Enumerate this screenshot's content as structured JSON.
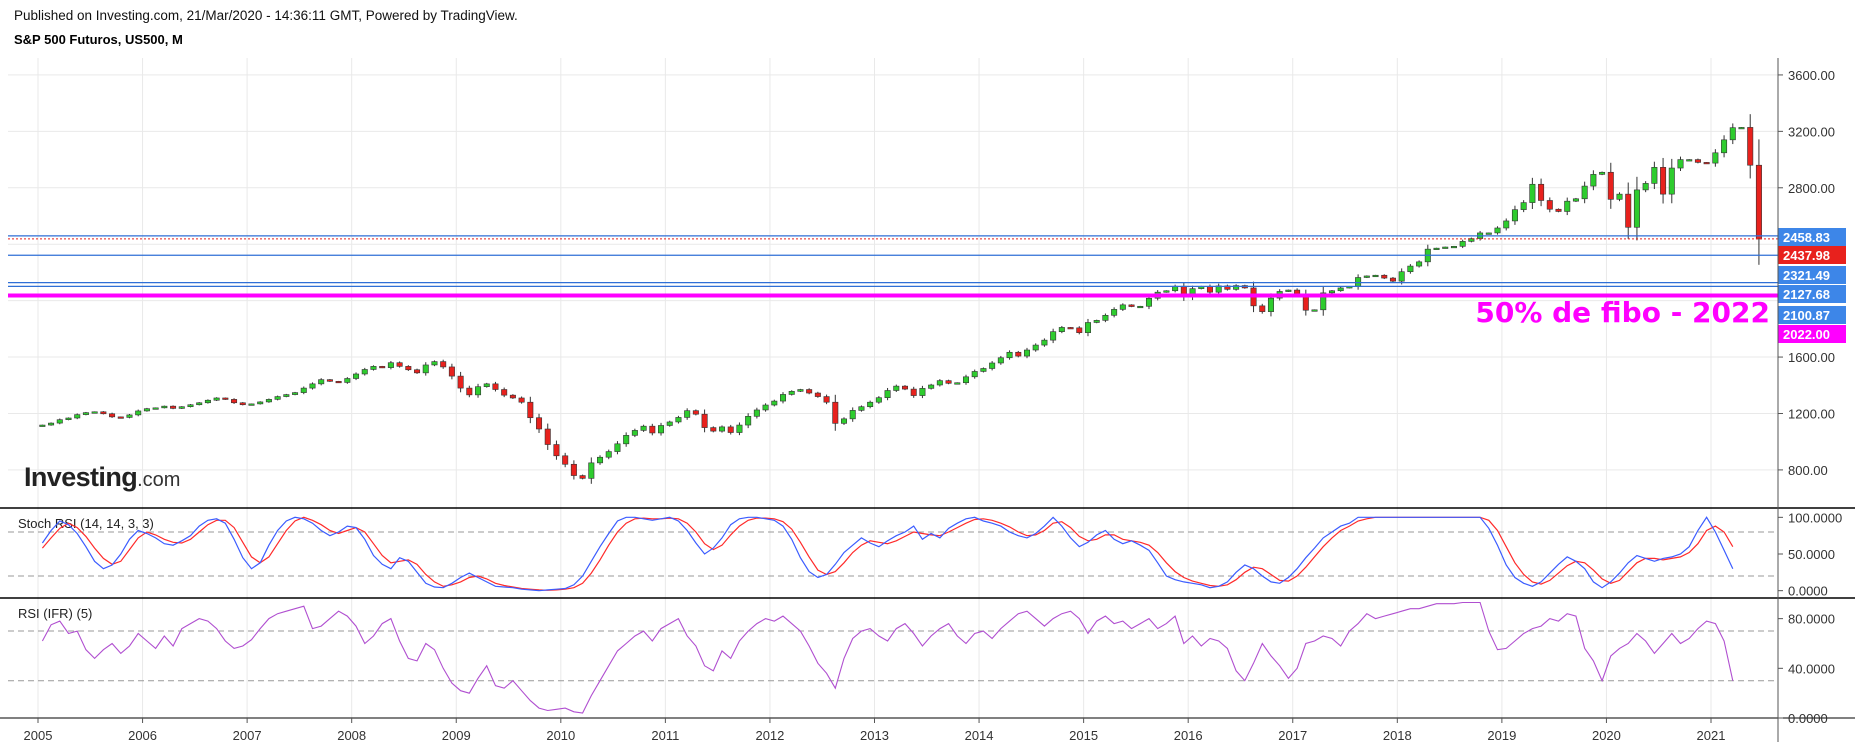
{
  "header": {
    "published": "Published on Investing.com, 21/Mar/2020 - 14:36:11 GMT, Powered by TradingView.",
    "symbol": "S&P 500 Futuros, US500, M"
  },
  "logo": {
    "word": "Investing",
    "suffix": ".com"
  },
  "annotation": "50% de fibo - 2022",
  "colors": {
    "up": "#2ecc2e",
    "down": "#e8211d",
    "blue_line": "#2f6fd6",
    "fibo": "#ff00ff",
    "stoch_k": "#3b5cff",
    "stoch_d": "#ff2a2a",
    "rsi": "#b04fd0",
    "grid": "#e9e9e9"
  },
  "chart_data": [
    {
      "panel": "price",
      "type": "candlestick",
      "xlabels": [
        "2005",
        "2006",
        "2007",
        "2008",
        "2009",
        "2010",
        "2011",
        "2012",
        "2013",
        "2014",
        "2015",
        "2016",
        "2017",
        "2018",
        "2019",
        "2020",
        "2021"
      ],
      "yticks": [
        "3600.00",
        "3200.00",
        "2800.00",
        "1600.00",
        "1200.00",
        "800.00"
      ],
      "ylim": [
        530,
        3720
      ],
      "series": [
        {
          "name": "close",
          "values": [
            1118,
            1132,
            1156,
            1168,
            1192,
            1206,
            1212,
            1198,
            1176,
            1172,
            1190,
            1218,
            1234,
            1240,
            1252,
            1236,
            1248,
            1262,
            1276,
            1294,
            1310,
            1300,
            1276,
            1262,
            1268,
            1282,
            1300,
            1320,
            1334,
            1348,
            1380,
            1410,
            1440,
            1428,
            1420,
            1448,
            1480,
            1512,
            1534,
            1525,
            1560,
            1534,
            1510,
            1488,
            1544,
            1568,
            1530,
            1465,
            1380,
            1332,
            1390,
            1410,
            1370,
            1330,
            1310,
            1280,
            1170,
            1090,
            980,
            900,
            840,
            760,
            740,
            850,
            890,
            930,
            985,
            1045,
            1080,
            1110,
            1062,
            1115,
            1140,
            1172,
            1220,
            1195,
            1100,
            1075,
            1105,
            1065,
            1118,
            1180,
            1225,
            1260,
            1288,
            1335,
            1357,
            1370,
            1345,
            1320,
            1280,
            1130,
            1162,
            1222,
            1248,
            1280,
            1312,
            1363,
            1394,
            1373,
            1327,
            1378,
            1402,
            1433,
            1414,
            1418,
            1460,
            1498,
            1519,
            1558,
            1595,
            1634,
            1607,
            1650,
            1685,
            1720,
            1780,
            1810,
            1807,
            1773,
            1845,
            1860,
            1896,
            1938,
            1970,
            1958,
            1960,
            2017,
            2060,
            2070,
            2102,
            2025,
            2085,
            2100,
            2060,
            2105,
            2080,
            2107,
            2090,
            1963,
            1922,
            2018,
            2065,
            2075,
            2040,
            1932,
            1935,
            2055,
            2070,
            2090,
            2100,
            2164,
            2175,
            2180,
            2160,
            2138,
            2205,
            2245,
            2275,
            2365,
            2372,
            2380,
            2385,
            2420,
            2440,
            2480,
            2480,
            2515,
            2565,
            2645,
            2695,
            2825,
            2710,
            2648,
            2632,
            2705,
            2722,
            2812,
            2895,
            2910,
            2718,
            2755,
            2520,
            2785,
            2831,
            2945,
            2755,
            2940,
            3000,
            3000,
            2980,
            2975,
            3048,
            3140,
            3226,
            3228,
            2960,
            2437
          ]
        },
        {
          "name": "open",
          "values": [
            1110,
            1118,
            1132,
            1156,
            1168,
            1192,
            1206,
            1212,
            1198,
            1176,
            1172,
            1190,
            1218,
            1234,
            1240,
            1252,
            1236,
            1248,
            1262,
            1276,
            1294,
            1310,
            1300,
            1276,
            1262,
            1268,
            1282,
            1300,
            1320,
            1334,
            1348,
            1380,
            1410,
            1440,
            1428,
            1420,
            1448,
            1480,
            1512,
            1534,
            1525,
            1560,
            1534,
            1510,
            1488,
            1544,
            1568,
            1530,
            1465,
            1380,
            1332,
            1390,
            1410,
            1370,
            1330,
            1310,
            1280,
            1170,
            1090,
            980,
            900,
            840,
            760,
            740,
            850,
            890,
            930,
            985,
            1045,
            1080,
            1110,
            1062,
            1115,
            1140,
            1172,
            1220,
            1195,
            1100,
            1075,
            1105,
            1065,
            1118,
            1180,
            1225,
            1260,
            1288,
            1335,
            1357,
            1370,
            1345,
            1320,
            1280,
            1130,
            1162,
            1222,
            1248,
            1280,
            1312,
            1363,
            1394,
            1373,
            1327,
            1378,
            1402,
            1433,
            1414,
            1418,
            1460,
            1498,
            1519,
            1558,
            1595,
            1634,
            1607,
            1650,
            1685,
            1720,
            1780,
            1810,
            1807,
            1773,
            1845,
            1860,
            1896,
            1938,
            1970,
            1958,
            1960,
            2017,
            2060,
            2070,
            2102,
            2025,
            2085,
            2100,
            2060,
            2105,
            2080,
            2107,
            2090,
            1963,
            1922,
            2018,
            2065,
            2075,
            2040,
            1932,
            1935,
            2055,
            2070,
            2090,
            2100,
            2164,
            2175,
            2180,
            2160,
            2138,
            2205,
            2245,
            2275,
            2365,
            2372,
            2380,
            2385,
            2420,
            2440,
            2480,
            2480,
            2515,
            2565,
            2645,
            2695,
            2825,
            2710,
            2648,
            2632,
            2705,
            2722,
            2812,
            2895,
            2910,
            2718,
            2755,
            2520,
            2785,
            2831,
            2945,
            2755,
            2940,
            3000,
            3000,
            2980,
            2975,
            3048,
            3140,
            3226,
            3228,
            2960
          ]
        }
      ],
      "first_period": "2005-01",
      "period": "month",
      "horizontal_levels": [
        {
          "value": 2458.83,
          "label": "2458.83",
          "color": "#2f6fd6"
        },
        {
          "value": 2437.98,
          "label": "2437.98",
          "color": "#e8211d"
        },
        {
          "value": 2321.49,
          "label": "2321.49",
          "color": "#2f6fd6"
        },
        {
          "value": 2127.68,
          "label": "2127.68",
          "color": "#2f6fd6"
        },
        {
          "value": 2100.87,
          "label": "2100.87",
          "color": "#2f6fd6"
        },
        {
          "value": 2022.0,
          "label": "2022.00",
          "color": "#ff00ff"
        }
      ]
    },
    {
      "panel": "indicator",
      "type": "line",
      "title": "Stoch RSI (14, 14, 3, 3)",
      "yticks": [
        "100.0000",
        "50.0000",
        "0.0000"
      ],
      "ylim": [
        -10,
        110
      ],
      "guides": [
        80,
        20
      ],
      "series": [
        {
          "name": "K",
          "values": [
            65,
            82,
            95,
            90,
            78,
            60,
            40,
            30,
            35,
            50,
            70,
            82,
            78,
            72,
            64,
            62,
            68,
            75,
            88,
            96,
            98,
            92,
            70,
            45,
            30,
            38,
            62,
            82,
            95,
            100,
            98,
            92,
            82,
            75,
            80,
            88,
            86,
            70,
            48,
            36,
            30,
            45,
            40,
            25,
            10,
            5,
            4,
            10,
            18,
            24,
            18,
            12,
            6,
            5,
            4,
            2,
            1,
            0,
            1,
            2,
            3,
            8,
            20,
            40,
            60,
            78,
            95,
            100,
            100,
            98,
            96,
            98,
            100,
            95,
            82,
            65,
            50,
            58,
            72,
            90,
            98,
            100,
            100,
            98,
            96,
            88,
            70,
            45,
            26,
            18,
            22,
            36,
            52,
            62,
            72,
            65,
            60,
            68,
            75,
            80,
            88,
            70,
            78,
            72,
            85,
            92,
            98,
            100,
            95,
            92,
            88,
            80,
            75,
            72,
            78,
            88,
            100,
            88,
            72,
            60,
            66,
            76,
            82,
            70,
            64,
            68,
            62,
            55,
            38,
            20,
            15,
            12,
            10,
            8,
            4,
            6,
            12,
            25,
            35,
            30,
            20,
            12,
            10,
            18,
            30,
            45,
            58,
            72,
            80,
            88,
            92,
            100,
            100,
            100,
            100,
            100,
            100,
            100,
            100,
            100,
            100,
            100,
            100,
            100,
            100,
            100,
            85,
            62,
            35,
            18,
            10,
            6,
            12,
            24,
            36,
            46,
            40,
            30,
            12,
            4,
            12,
            24,
            38,
            48,
            44,
            40,
            44,
            46,
            50,
            60,
            82,
            100,
            80,
            55,
            30
          ]
        },
        {
          "name": "D",
          "values": [
            58,
            72,
            85,
            92,
            86,
            74,
            58,
            44,
            36,
            40,
            56,
            72,
            80,
            76,
            70,
            66,
            65,
            70,
            80,
            90,
            96,
            96,
            86,
            66,
            46,
            38,
            46,
            64,
            82,
            95,
            100,
            96,
            90,
            82,
            78,
            82,
            86,
            80,
            64,
            48,
            38,
            40,
            42,
            36,
            22,
            12,
            6,
            8,
            12,
            18,
            20,
            16,
            10,
            7,
            5,
            3,
            2,
            1,
            0.5,
            1,
            2,
            4,
            10,
            24,
            42,
            62,
            80,
            92,
            98,
            99,
            98,
            98,
            99,
            98,
            92,
            80,
            64,
            56,
            62,
            76,
            88,
            96,
            99,
            99,
            98,
            94,
            84,
            66,
            46,
            28,
            22,
            26,
            38,
            52,
            62,
            68,
            66,
            64,
            68,
            74,
            80,
            78,
            76,
            75,
            80,
            86,
            92,
            97,
            98,
            96,
            92,
            87,
            80,
            75,
            76,
            82,
            92,
            94,
            86,
            74,
            68,
            70,
            76,
            76,
            70,
            68,
            66,
            62,
            52,
            38,
            26,
            18,
            13,
            10,
            7,
            6,
            8,
            15,
            25,
            32,
            30,
            22,
            14,
            13,
            20,
            32,
            46,
            60,
            72,
            82,
            88,
            95,
            98,
            100,
            100,
            100,
            100,
            100,
            100,
            100,
            100,
            100,
            100,
            100,
            100,
            100,
            96,
            82,
            60,
            38,
            22,
            12,
            9,
            14,
            24,
            34,
            40,
            38,
            28,
            16,
            10,
            14,
            26,
            38,
            44,
            44,
            42,
            44,
            46,
            52,
            64,
            82,
            88,
            80,
            60
          ]
        }
      ]
    },
    {
      "panel": "indicator",
      "type": "line",
      "title": "RSI (IFR) (5)",
      "yticks": [
        "80.0000",
        "40.0000",
        "0.0000"
      ],
      "ylim": [
        0,
        95
      ],
      "guides": [
        70,
        30
      ],
      "series": [
        {
          "name": "RSI",
          "values": [
            62,
            75,
            78,
            68,
            70,
            55,
            48,
            55,
            60,
            52,
            58,
            68,
            62,
            56,
            66,
            58,
            72,
            76,
            80,
            78,
            72,
            62,
            56,
            58,
            63,
            72,
            80,
            84,
            86,
            88,
            90,
            72,
            74,
            80,
            86,
            82,
            74,
            60,
            66,
            76,
            80,
            62,
            48,
            46,
            60,
            55,
            40,
            28,
            22,
            20,
            32,
            42,
            26,
            24,
            30,
            22,
            14,
            8,
            6,
            7,
            8,
            5,
            4,
            18,
            30,
            42,
            54,
            60,
            66,
            70,
            62,
            72,
            76,
            80,
            66,
            58,
            42,
            38,
            54,
            48,
            62,
            70,
            76,
            80,
            78,
            82,
            76,
            70,
            58,
            44,
            36,
            24,
            48,
            64,
            70,
            72,
            66,
            62,
            72,
            76,
            68,
            58,
            66,
            72,
            76,
            66,
            60,
            68,
            70,
            64,
            72,
            78,
            84,
            86,
            80,
            74,
            80,
            84,
            86,
            80,
            68,
            78,
            82,
            76,
            78,
            72,
            76,
            80,
            72,
            76,
            82,
            60,
            66,
            58,
            64,
            62,
            56,
            38,
            30,
            44,
            60,
            50,
            42,
            32,
            40,
            60,
            62,
            66,
            64,
            58,
            70,
            76,
            84,
            80,
            82,
            84,
            86,
            88,
            88,
            90,
            92,
            92,
            92,
            93,
            93,
            93,
            70,
            55,
            56,
            62,
            68,
            72,
            74,
            80,
            78,
            84,
            82,
            56,
            46,
            30,
            50,
            56,
            60,
            68,
            62,
            52,
            60,
            68,
            60,
            64,
            72,
            78,
            76,
            62,
            30
          ]
        }
      ]
    }
  ]
}
